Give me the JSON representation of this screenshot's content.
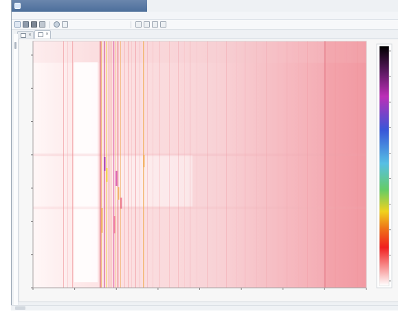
{
  "window": {
    "title": ""
  },
  "menu": {
    "items": [
      "",
      "",
      "",
      "",
      ""
    ]
  },
  "tabs": [
    {
      "label": ""
    },
    {
      "label": ""
    }
  ],
  "theme": {
    "accent": "#1f62c6",
    "window_bg": "#eef1f4",
    "heatmap_low": "#ffffff",
    "heatmap_mid": "#f48f98",
    "heatmap_high": "#6b2a2a"
  },
  "toolbar": {
    "icons": [
      "new-icon",
      "open-icon",
      "save-icon",
      "print-icon",
      "zoom-icon",
      "cursor-icon",
      "line-icon",
      "settings-icon"
    ]
  },
  "chart_data": {
    "type": "heatmap",
    "x_ticks": [
      "",
      "",
      "",
      "",
      "",
      "",
      "",
      "",
      ""
    ],
    "y_ticks": [
      "",
      "",
      "",
      "",
      "",
      "",
      "",
      ""
    ],
    "colorbar_ticks": [
      "",
      "",
      "",
      "",
      "",
      "",
      "",
      "",
      "",
      ""
    ],
    "colorbar_colors": [
      "#000000",
      "#5f1a64",
      "#bc2fb7",
      "#3856d8",
      "#56bfe4",
      "#65cc66",
      "#f0d21d",
      "#ef7418",
      "#f01f1f",
      "#ffffff"
    ]
  }
}
